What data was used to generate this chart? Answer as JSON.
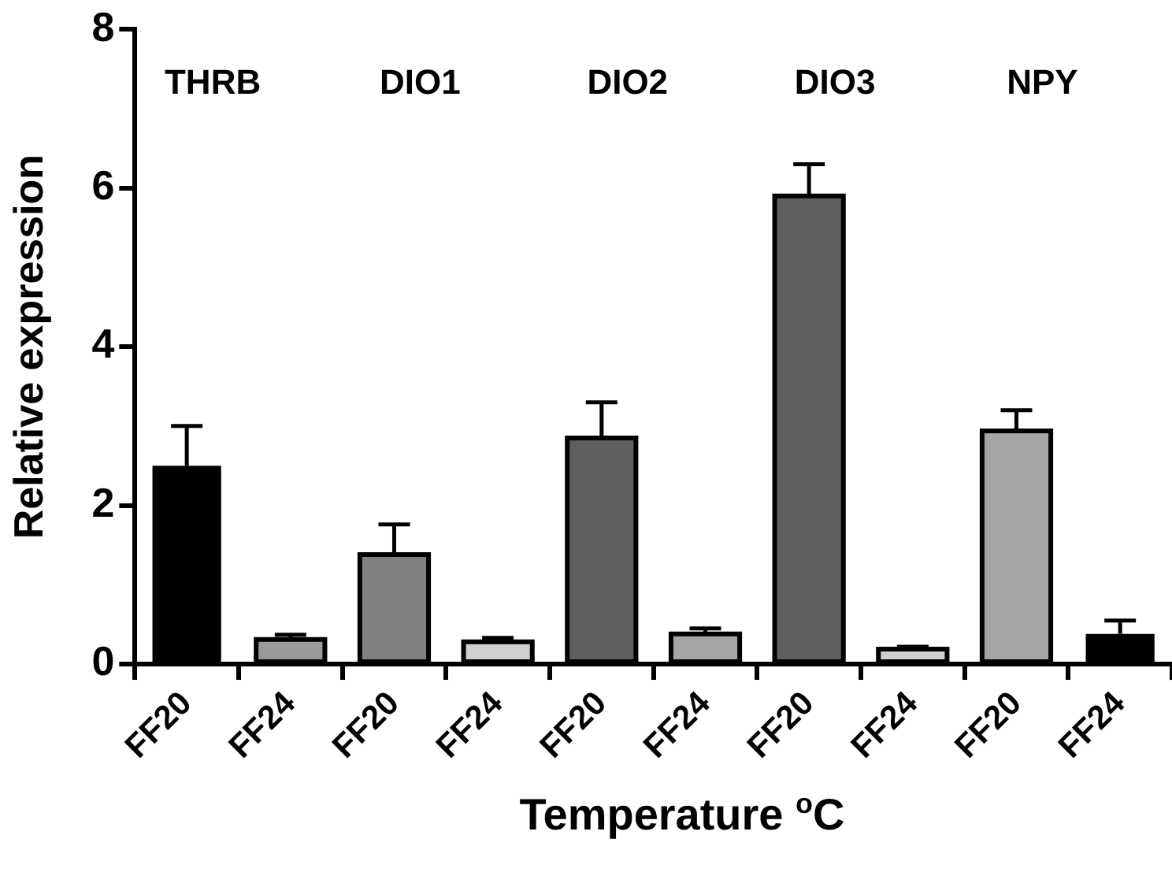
{
  "chart_data": {
    "type": "bar",
    "xlabel": "Temperature $^{o}$C",
    "ylabel": "Relative expression",
    "categories": [
      "FF20",
      "FF24",
      "FF20",
      "FF24",
      "FF20",
      "FF24",
      "FF20",
      "FF24",
      "FF20",
      "FF24"
    ],
    "values": [
      2.5,
      0.31,
      1.38,
      0.28,
      2.85,
      0.38,
      5.9,
      0.19,
      2.94,
      0.38
    ],
    "errors": [
      0.5,
      0.06,
      0.38,
      0.05,
      0.45,
      0.07,
      0.4,
      0.03,
      0.26,
      0.17
    ],
    "colors": [
      "#000000",
      "#9a9a9a",
      "#808080",
      "#cfcfcf",
      "#5f5f5f",
      "#a6a6a6",
      "#5f5f5f",
      "#d0d0d0",
      "#a5a5a7",
      "#000000"
    ],
    "annotations": [
      "THRB",
      "DIO1",
      "DIO2",
      "DIO3",
      "NPY"
    ],
    "ylim": [
      0,
      8
    ],
    "yticks": [
      0,
      2,
      4,
      6,
      8
    ],
    "grid": false,
    "legend": false
  }
}
